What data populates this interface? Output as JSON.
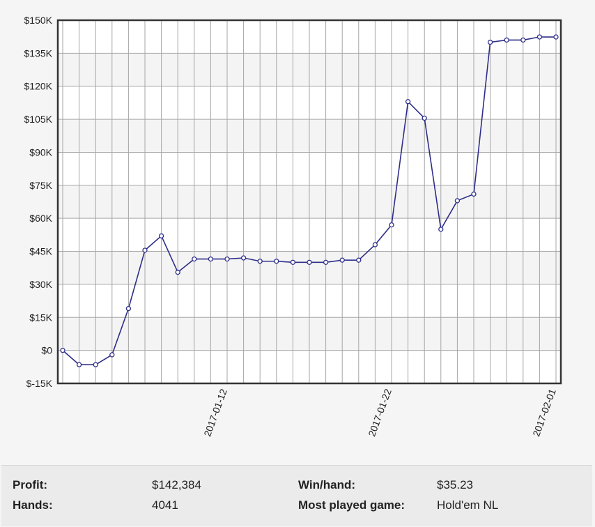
{
  "chart_data": {
    "type": "line",
    "title": "",
    "xlabel": "",
    "ylabel": "",
    "ylim": [
      -15000,
      150000
    ],
    "y_ticks": [
      -15000,
      0,
      15000,
      30000,
      45000,
      60000,
      75000,
      90000,
      105000,
      120000,
      135000,
      150000
    ],
    "y_tick_labels": [
      "$-15K",
      "$0",
      "$15K",
      "$30K",
      "$45K",
      "$60K",
      "$75K",
      "$90K",
      "$105K",
      "$120K",
      "$135K",
      "$150K"
    ],
    "x_tick_labels": [
      {
        "label": "2017-01-12",
        "index": 10
      },
      {
        "label": "2017-01-22",
        "index": 20
      },
      {
        "label": "2017-02-01",
        "index": 30
      }
    ],
    "grid": true,
    "line_color": "#2e2e8a",
    "series": [
      {
        "values": [
          0,
          -6500,
          -6500,
          -2000,
          19000,
          45500,
          52000,
          35500,
          41500,
          41500,
          41500,
          42000,
          40500,
          40500,
          40000,
          40000,
          40000,
          41000,
          41000,
          48000,
          57000,
          113000,
          105500,
          55000,
          68000,
          71000,
          140000,
          141000,
          141000,
          142400,
          142384
        ]
      }
    ]
  },
  "stats": {
    "profit_label": "Profit:",
    "profit_value": "$142,384",
    "hands_label": "Hands:",
    "hands_value": "4041",
    "winhand_label": "Win/hand:",
    "winhand_value": "$35.23",
    "game_label": "Most played game:",
    "game_value": "Hold'em NL"
  }
}
